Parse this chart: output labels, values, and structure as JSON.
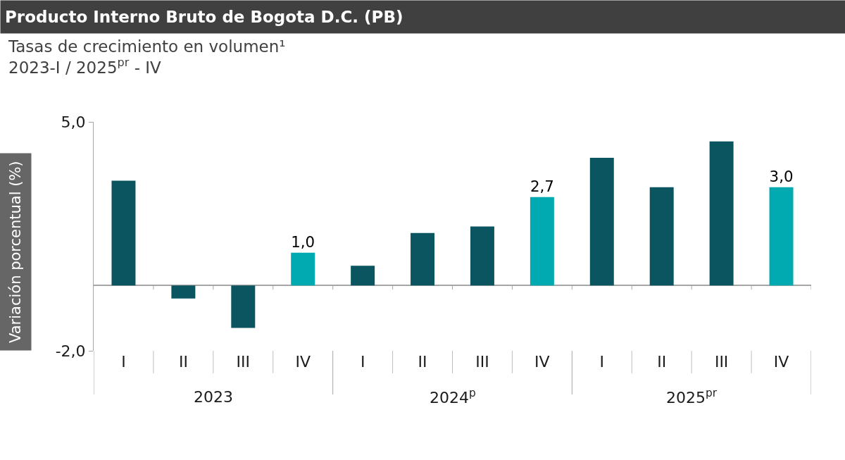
{
  "chart_data": {
    "type": "bar",
    "title": "Producto Interno Bruto de Bogota D.C. (PB)",
    "subtitle": "Tasas de crecimiento en volumen¹\n2023-I / 2025$^{pr}$ - IV",
    "ylabel": "Variación porcentual (%)",
    "categories": [
      "I",
      "II",
      "III",
      "IV",
      "I",
      "II",
      "III",
      "IV",
      "I",
      "II",
      "III",
      "IV"
    ],
    "values": [
      3.2,
      -0.4,
      -1.3,
      1.0,
      0.6,
      1.6,
      1.8,
      2.7,
      3.9,
      3.0,
      4.4,
      3.0
    ],
    "colors": [
      "#0a5560",
      "#0a5560",
      "#0a5560",
      "#00aab0",
      "#0a5560",
      "#0a5560",
      "#0a5560",
      "#00aab0",
      "#0a5560",
      "#0a5560",
      "#0a5560",
      "#00aab0"
    ],
    "value_labels": [
      null,
      null,
      null,
      "1,0",
      null,
      null,
      null,
      "2,7",
      null,
      null,
      null,
      "3,0"
    ],
    "annotations": [
      "2023",
      "2024$^{p}$",
      "2025$^{pr}$"
    ],
    "ylim": [
      -2,
      5
    ],
    "yticks": [
      {
        "value": 5,
        "label": "5,0"
      },
      {
        "value": -2,
        "label": "-2,0"
      }
    ]
  }
}
